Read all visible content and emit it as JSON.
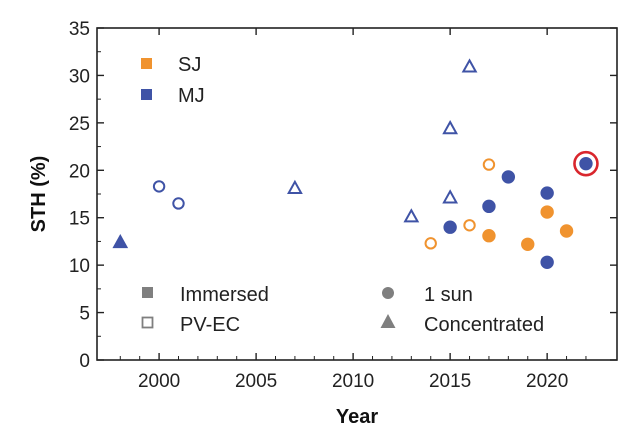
{
  "chart_data": {
    "type": "scatter",
    "xlabel": "Year",
    "ylabel": "STH (%)",
    "xlim": [
      1996.8,
      2023.6
    ],
    "ylim": [
      0,
      35
    ],
    "xticks": [
      2000,
      2005,
      2010,
      2015,
      2020
    ],
    "yticks": [
      0,
      5,
      10,
      15,
      20,
      25,
      30,
      35
    ],
    "legend_color": [
      {
        "label": "SJ",
        "color": "#f0932f"
      },
      {
        "label": "MJ",
        "color": "#3f53a6"
      }
    ],
    "legend_fill": [
      {
        "label": "Immersed",
        "style": "filled"
      },
      {
        "label": "PV-EC",
        "style": "hollow"
      }
    ],
    "legend_shape": [
      {
        "label": "1 sun",
        "shape": "circle"
      },
      {
        "label": "Concentrated",
        "shape": "triangle"
      }
    ],
    "points": [
      {
        "x": 1998,
        "y": 12.4,
        "junction": "MJ",
        "method": "Immersed",
        "light": "Concentrated"
      },
      {
        "x": 2000,
        "y": 18.3,
        "junction": "MJ",
        "method": "PV-EC",
        "light": "1 sun"
      },
      {
        "x": 2001,
        "y": 16.5,
        "junction": "MJ",
        "method": "PV-EC",
        "light": "1 sun"
      },
      {
        "x": 2007,
        "y": 18.1,
        "junction": "MJ",
        "method": "PV-EC",
        "light": "Concentrated"
      },
      {
        "x": 2013,
        "y": 15.1,
        "junction": "MJ",
        "method": "PV-EC",
        "light": "Concentrated"
      },
      {
        "x": 2014,
        "y": 12.3,
        "junction": "SJ",
        "method": "PV-EC",
        "light": "1 sun"
      },
      {
        "x": 2015,
        "y": 14.0,
        "junction": "MJ",
        "method": "Immersed",
        "light": "1 sun"
      },
      {
        "x": 2015,
        "y": 17.1,
        "junction": "MJ",
        "method": "PV-EC",
        "light": "Concentrated"
      },
      {
        "x": 2015,
        "y": 24.4,
        "junction": "MJ",
        "method": "PV-EC",
        "light": "Concentrated"
      },
      {
        "x": 2016,
        "y": 14.2,
        "junction": "SJ",
        "method": "PV-EC",
        "light": "1 sun"
      },
      {
        "x": 2016,
        "y": 30.9,
        "junction": "MJ",
        "method": "PV-EC",
        "light": "Concentrated"
      },
      {
        "x": 2017,
        "y": 13.1,
        "junction": "SJ",
        "method": "Immersed",
        "light": "1 sun"
      },
      {
        "x": 2017,
        "y": 16.2,
        "junction": "MJ",
        "method": "Immersed",
        "light": "1 sun"
      },
      {
        "x": 2017,
        "y": 20.6,
        "junction": "SJ",
        "method": "PV-EC",
        "light": "1 sun"
      },
      {
        "x": 2018,
        "y": 19.3,
        "junction": "MJ",
        "method": "Immersed",
        "light": "1 sun"
      },
      {
        "x": 2019,
        "y": 12.2,
        "junction": "SJ",
        "method": "Immersed",
        "light": "1 sun"
      },
      {
        "x": 2020,
        "y": 10.3,
        "junction": "MJ",
        "method": "Immersed",
        "light": "1 sun"
      },
      {
        "x": 2020,
        "y": 15.6,
        "junction": "SJ",
        "method": "Immersed",
        "light": "1 sun"
      },
      {
        "x": 2020,
        "y": 17.6,
        "junction": "MJ",
        "method": "Immersed",
        "light": "1 sun"
      },
      {
        "x": 2021,
        "y": 13.6,
        "junction": "SJ",
        "method": "Immersed",
        "light": "1 sun"
      },
      {
        "x": 2022,
        "y": 20.7,
        "junction": "MJ",
        "method": "Immersed",
        "light": "1 sun",
        "highlight": true
      }
    ],
    "highlight_color": "#d9262d",
    "grid": false
  }
}
